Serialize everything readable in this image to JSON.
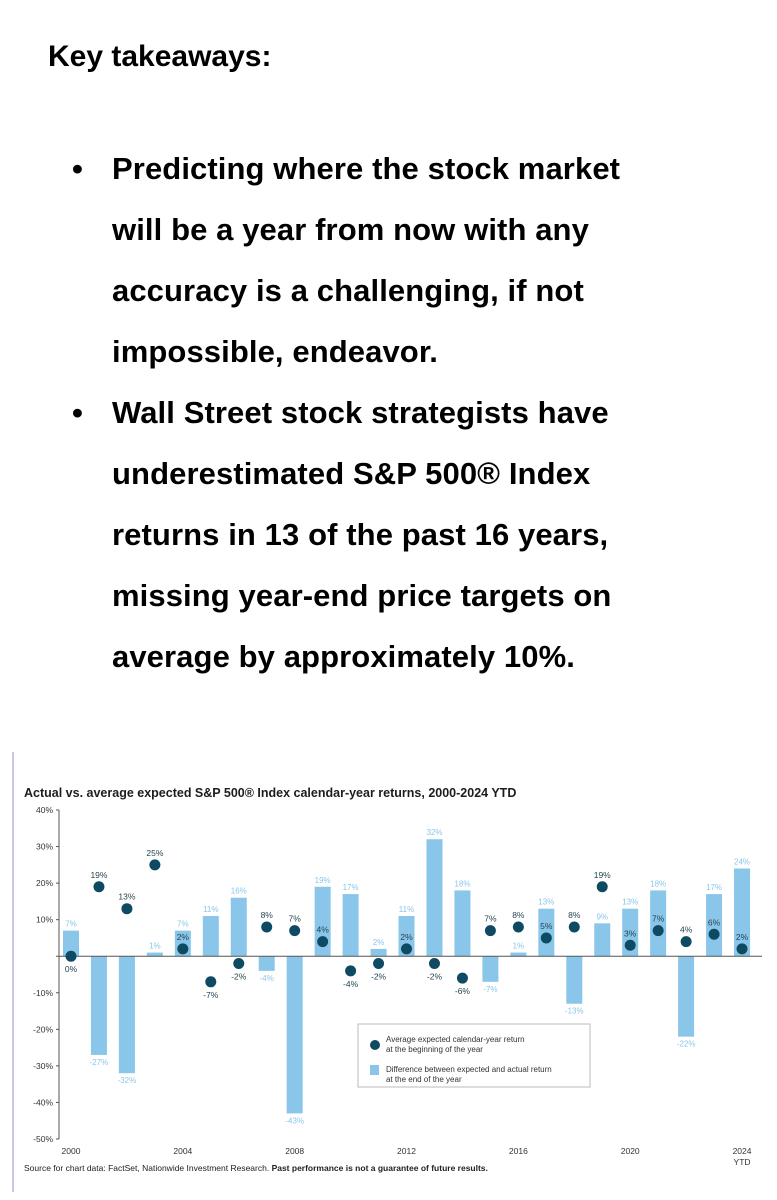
{
  "heading": "Key takeaways:",
  "bullets": [
    {
      "lines": [
        "Predicting where the stock market",
        "will be a year from now with any",
        "accuracy is a challenging, if not",
        "impossible, endeavor."
      ]
    },
    {
      "lines": [
        "Wall Street stock strategists have",
        "underestimated S&P 500® Index",
        "returns in 13 of the past 16 years,",
        "missing year-end price targets on",
        "average by approximately 10%."
      ]
    }
  ],
  "bullet_glyph": "•",
  "chart_data": {
    "type": "bar",
    "title": "Actual vs. average expected S&P 500® Index calendar-year returns, 2000-2024 YTD",
    "categories": [
      2000,
      2001,
      2002,
      2003,
      2004,
      2005,
      2006,
      2007,
      2008,
      2009,
      2010,
      2011,
      2012,
      2013,
      2014,
      2015,
      2016,
      2017,
      2018,
      2019,
      2020,
      2021,
      2022,
      2023,
      2024
    ],
    "x_tick_labels": [
      "2000",
      "2004",
      "2008",
      "2012",
      "2016",
      "2020",
      "2024"
    ],
    "x_tick_sublabel": "YTD",
    "y_ticks": [
      "40%",
      "30%",
      "20%",
      "10%",
      "",
      "-10%",
      "-20%",
      "-30%",
      "-40%",
      "-50%"
    ],
    "ylim": [
      -50,
      40
    ],
    "unit": "%",
    "grid": false,
    "series": [
      {
        "name": "Difference between expected and actual return at the end of the year",
        "kind": "bar",
        "color": "#8ac6e9",
        "values": [
          7,
          -27,
          -32,
          1,
          7,
          11,
          16,
          -4,
          -43,
          19,
          17,
          2,
          11,
          32,
          18,
          -7,
          1,
          13,
          -13,
          9,
          13,
          18,
          -22,
          17,
          24
        ]
      },
      {
        "name": "Average expected calendar-year return at the beginning of the year",
        "kind": "dot",
        "color": "#0f4a63",
        "values": [
          0,
          19,
          13,
          25,
          2,
          -7,
          -2,
          8,
          7,
          4,
          -4,
          -2,
          2,
          -2,
          -6,
          7,
          8,
          5,
          8,
          19,
          3,
          7,
          4,
          6,
          2
        ]
      }
    ],
    "legend": {
      "placement": "bottom-center",
      "dot_label": [
        "Average expected calendar-year return",
        "at the beginning of the year"
      ],
      "bar_label": [
        "Difference between expected and actual return",
        "at the end of the year"
      ]
    },
    "source_normal": "Source for chart data: FactSet, Nationwide Investment Research. ",
    "source_bold": "Past performance is not a guarantee of future results."
  }
}
